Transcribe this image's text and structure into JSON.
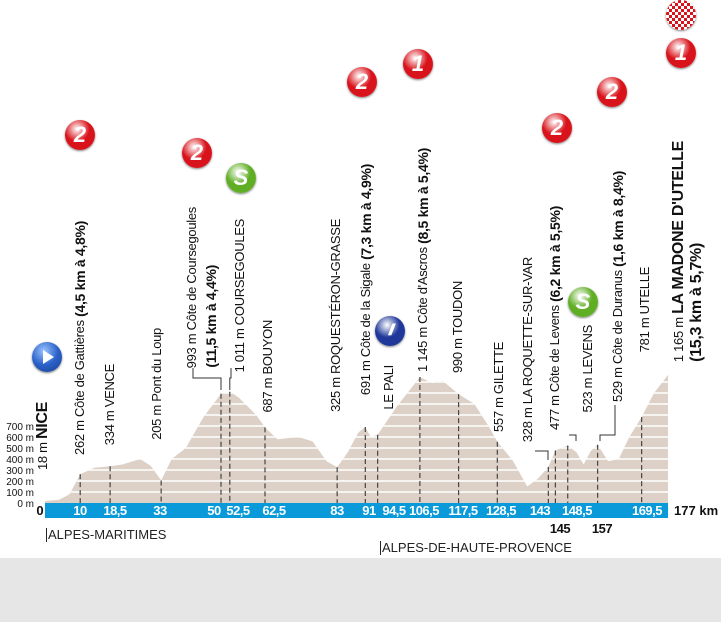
{
  "chart_data": {
    "type": "area",
    "title": "",
    "xlabel": "",
    "ylabel": "",
    "xlim": [
      0,
      177
    ],
    "ylim": [
      0,
      1200
    ],
    "x_unit_label": "177 km",
    "x_start_label": "0",
    "y_ticks": [
      "0 m",
      "100 m",
      "200 m",
      "300 m",
      "400 m",
      "500 m",
      "600 m",
      "700 m"
    ],
    "grid": true,
    "profile": [
      [
        0,
        18
      ],
      [
        4,
        30
      ],
      [
        7,
        80
      ],
      [
        10,
        262
      ],
      [
        14,
        320
      ],
      [
        18.5,
        334
      ],
      [
        22,
        350
      ],
      [
        27,
        400
      ],
      [
        30,
        340
      ],
      [
        33,
        205
      ],
      [
        36,
        400
      ],
      [
        40,
        500
      ],
      [
        45,
        780
      ],
      [
        50,
        993
      ],
      [
        52.5,
        1011
      ],
      [
        55,
        960
      ],
      [
        60,
        800
      ],
      [
        62.5,
        687
      ],
      [
        66,
        580
      ],
      [
        72,
        600
      ],
      [
        76,
        560
      ],
      [
        80,
        380
      ],
      [
        83,
        325
      ],
      [
        86,
        460
      ],
      [
        89,
        640
      ],
      [
        91,
        691
      ],
      [
        92.5,
        600
      ],
      [
        94.5,
        620
      ],
      [
        100,
        880
      ],
      [
        106.5,
        1145
      ],
      [
        110,
        1090
      ],
      [
        113,
        1110
      ],
      [
        117.5,
        990
      ],
      [
        122,
        900
      ],
      [
        126,
        700
      ],
      [
        128.5,
        557
      ],
      [
        133,
        380
      ],
      [
        137,
        150
      ],
      [
        140,
        220
      ],
      [
        143,
        328
      ],
      [
        145,
        477
      ],
      [
        148.5,
        523
      ],
      [
        151,
        460
      ],
      [
        153,
        350
      ],
      [
        155,
        470
      ],
      [
        157,
        529
      ],
      [
        160,
        380
      ],
      [
        163,
        400
      ],
      [
        166,
        600
      ],
      [
        169.5,
        781
      ],
      [
        173,
        1000
      ],
      [
        177,
        1165
      ]
    ],
    "km_marks": [
      {
        "km": 10,
        "label": "10"
      },
      {
        "km": 18.5,
        "label": "18,5"
      },
      {
        "km": 33,
        "label": "33"
      },
      {
        "km": 50,
        "label": "50"
      },
      {
        "km": 52.5,
        "label": "52,5"
      },
      {
        "km": 62.5,
        "label": "62,5"
      },
      {
        "km": 83,
        "label": "83"
      },
      {
        "km": 91,
        "label": "91"
      },
      {
        "km": 94.5,
        "label": "94,5"
      },
      {
        "km": 106.5,
        "label": "106,5"
      },
      {
        "km": 117.5,
        "label": "117,5"
      },
      {
        "km": 128.5,
        "label": "128,5"
      },
      {
        "km": 143,
        "label": "143"
      },
      {
        "km": 145,
        "label": "145",
        "below": true
      },
      {
        "km": 148.5,
        "label": "148,5"
      },
      {
        "km": 157,
        "label": "157",
        "below": true
      },
      {
        "km": 169.5,
        "label": "169,5"
      }
    ],
    "colors": {
      "profile": "#ddd0c6",
      "bar": "#0a9ad9",
      "grid": "#ffffff",
      "kom": "#d9131b",
      "sprint": "#5fae24",
      "feed": "#20389a"
    }
  },
  "labels": [
    {
      "pre": "18 m ",
      "bold": "NICE"
    },
    {
      "pre": "262 m Côte de Gattières ",
      "bold": "(4,5 km à 4,8%)"
    },
    {
      "pre": "334 m VENCE",
      "bold": ""
    },
    {
      "pre": "205 m Pont du Loup",
      "bold": ""
    },
    {
      "pre": "993 m Côte de Coursegoules",
      "bold": ""
    },
    {
      "pre": "",
      "bold": "(11,5 km à 4,4%)"
    },
    {
      "pre": "1 011 m COURSEGOULES",
      "bold": ""
    },
    {
      "pre": "687 m BOUYON",
      "bold": ""
    },
    {
      "pre": "325 m ROQUESTÉRON-GRASSE",
      "bold": ""
    },
    {
      "pre": "691 m Côte de la Sigale ",
      "bold": "(7,3 km à 4,9%)"
    },
    {
      "pre": "LE PALI",
      "bold": ""
    },
    {
      "pre": "1 145 m Côte d'Ascros ",
      "bold": "(8,5 km à 5,4%)"
    },
    {
      "pre": "990 m TOUDON",
      "bold": ""
    },
    {
      "pre": "557 m GILETTE",
      "bold": ""
    },
    {
      "pre": "328 m LA ROQUETTE-SUR-VAR",
      "bold": ""
    },
    {
      "pre": "477 m Côte de Levens ",
      "bold": "(6,2 km à 5,5%)"
    },
    {
      "pre": "523 m LEVENS",
      "bold": ""
    },
    {
      "pre": "529 m Côte de Duranus ",
      "bold": "(1,6 km à 8,4%)"
    },
    {
      "pre": "781 m UTELLE",
      "bold": ""
    },
    {
      "pre": "1 165 m ",
      "bold": "LA MADONE D'UTELLE"
    },
    {
      "pre": "",
      "bold": "(15,3 km à 5,7%)"
    }
  ],
  "badges": [
    {
      "type": "kom",
      "text": "2"
    },
    {
      "type": "kom",
      "text": "2"
    },
    {
      "type": "sprint",
      "text": "S"
    },
    {
      "type": "feed",
      "text": "//"
    },
    {
      "type": "kom",
      "text": "2"
    },
    {
      "type": "kom",
      "text": "1"
    },
    {
      "type": "kom",
      "text": "2"
    },
    {
      "type": "sprint",
      "text": "S"
    },
    {
      "type": "kom",
      "text": "2"
    },
    {
      "type": "kom",
      "text": "1"
    },
    {
      "type": "finish",
      "text": ""
    }
  ],
  "regions": [
    "ALPES-MARITIMES",
    "ALPES-DE-HAUTE-PROVENCE"
  ]
}
